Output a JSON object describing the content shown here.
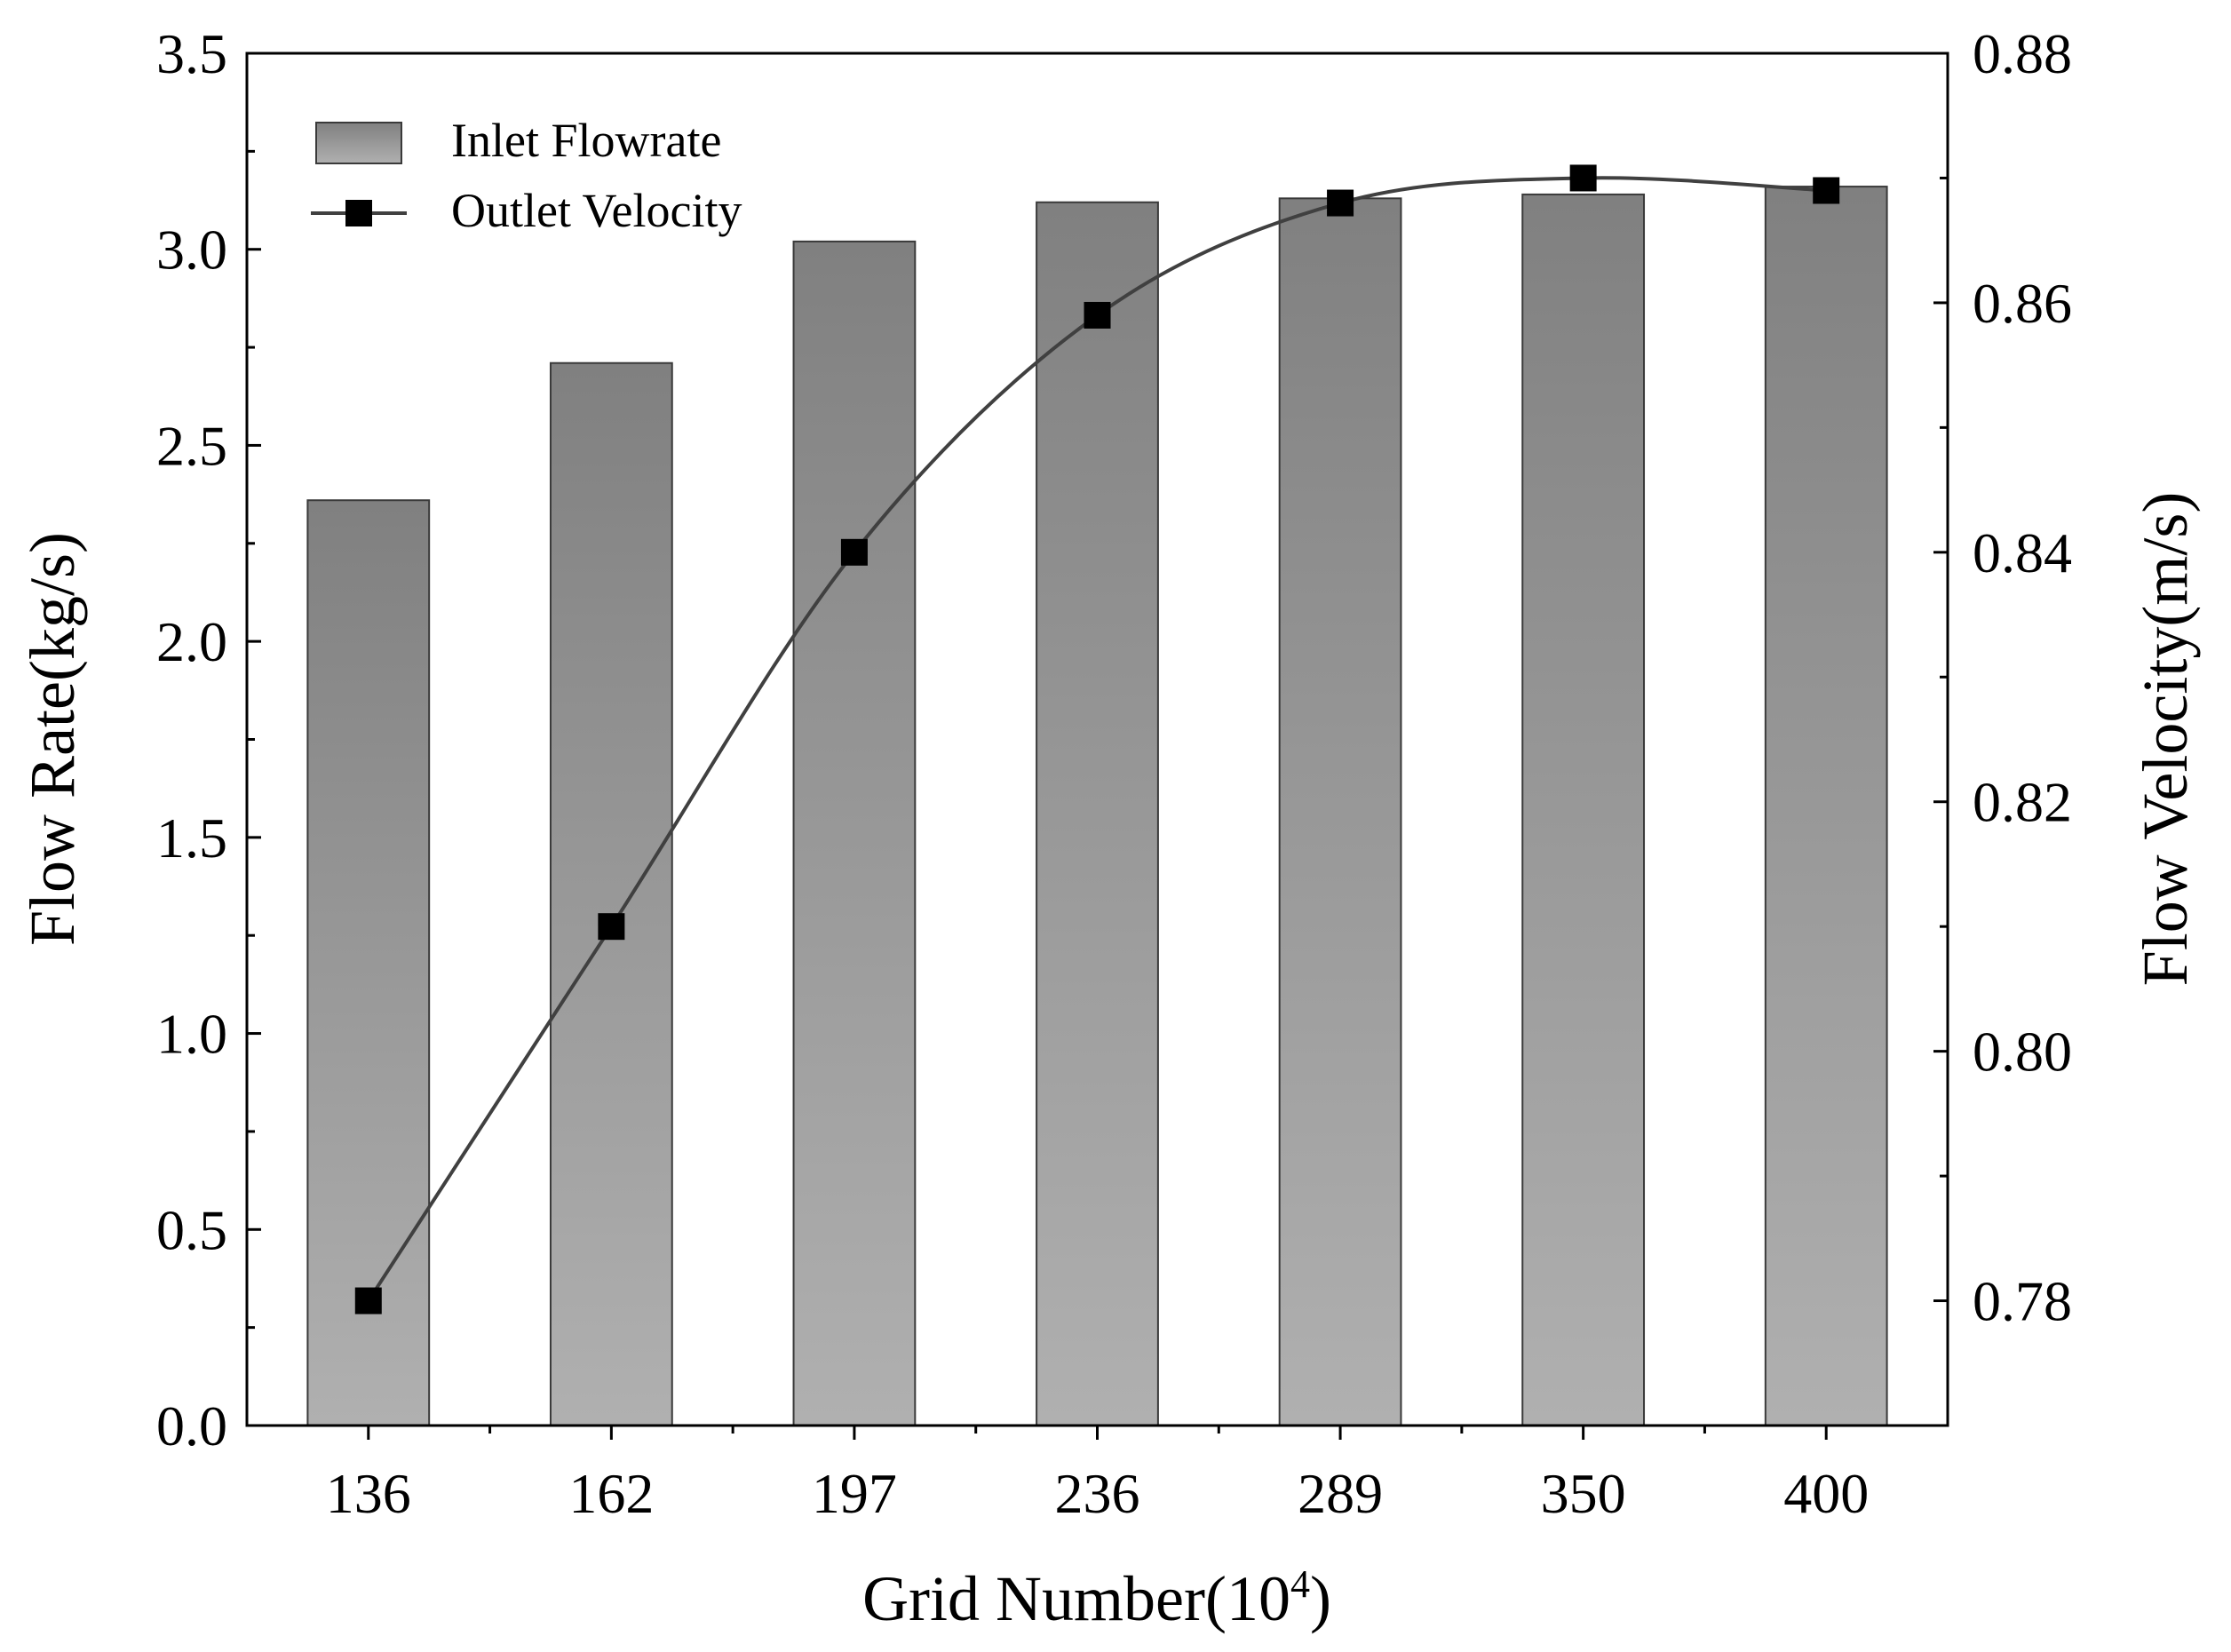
{
  "chart_data": {
    "type": "bar",
    "title": "",
    "xlabel": "Grid  Number(10",
    "xlabel_sup": "4",
    "xlabel_close": ")",
    "ylabel_left": "Flow   Rate(kg/s)",
    "ylabel_right": "Flow   Velocity(m/s)",
    "categories": [
      "136",
      "162",
      "197",
      "236",
      "289",
      "350",
      "400"
    ],
    "series": [
      {
        "name": "Inlet Flowrate",
        "kind": "bar",
        "axis": "left",
        "values": [
          2.36,
          2.71,
          3.02,
          3.12,
          3.13,
          3.14,
          3.16
        ]
      },
      {
        "name": "Outlet Velocity",
        "kind": "line",
        "axis": "right",
        "marker": "square",
        "values": [
          0.78,
          0.81,
          0.84,
          0.859,
          0.868,
          0.87,
          0.869
        ]
      }
    ],
    "ylim_left": [
      0,
      3.5
    ],
    "yticks_left": [
      "0.0",
      "0.5",
      "1.0",
      "1.5",
      "2.0",
      "2.5",
      "3.0",
      "3.5"
    ],
    "ylim_right": [
      0.77,
      0.88
    ],
    "yticks_right": [
      "0.78",
      "0.80",
      "0.82",
      "0.84",
      "0.86",
      "0.88"
    ],
    "legend_position": "top-left",
    "grid": false,
    "colors": {
      "bar_top": "#808080",
      "bar_bottom": "#b0b0b0",
      "bar_edge": "#3a3a3a",
      "line": "#404040",
      "marker": "#000000"
    }
  }
}
